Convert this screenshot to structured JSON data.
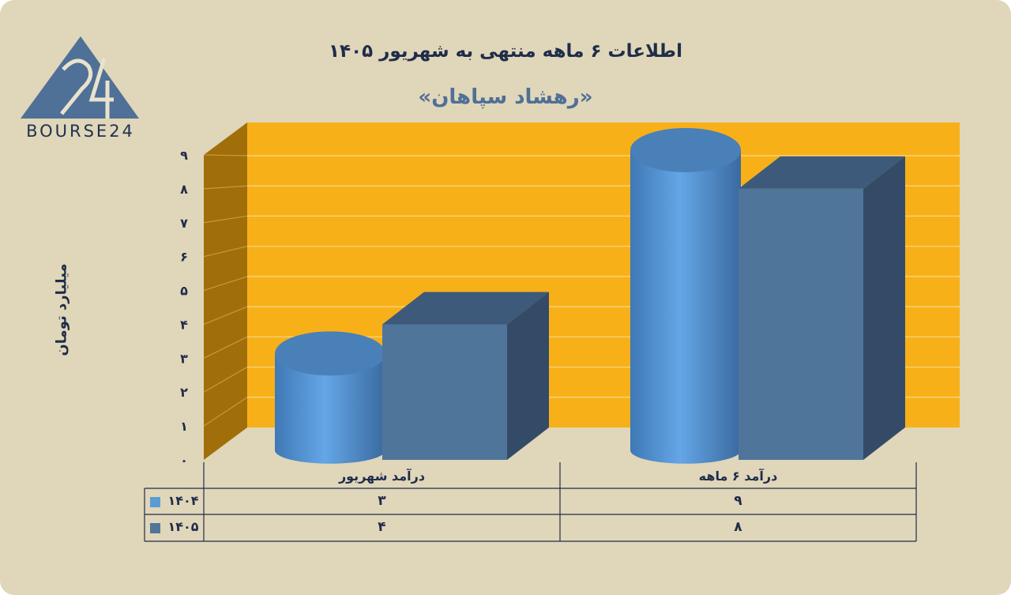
{
  "title": "اطلاعات ۶ ماهه منتهی به شهریور ۱۴۰۵",
  "subtitle": "«رهشاد سپاهان»",
  "logo_text": "BOURSE24",
  "colors": {
    "background": "#e0d6b9",
    "plot_back": "#f8b018",
    "plot_side": "#a06f0a",
    "series_1404": "#5b9bd5",
    "series_1405": "#50759b",
    "text_dark": "#1f2d4a"
  },
  "chart_data": {
    "type": "bar",
    "categories": [
      "درآمد  شهریور",
      "درآمد ۶  ماهه"
    ],
    "series": [
      {
        "name": "۱۴۰۴",
        "values": [
          3,
          9
        ],
        "shape": "cylinder"
      },
      {
        "name": "۱۴۰۵",
        "values": [
          4,
          8
        ],
        "shape": "box"
      }
    ],
    "ylabel": "میلیارد تومان",
    "ylim": [
      0,
      9
    ],
    "yticks": [
      "۰",
      "۱",
      "۲",
      "۳",
      "۴",
      "۵",
      "۶",
      "۷",
      "۸",
      "۹"
    ],
    "table_values": [
      [
        "۳",
        "۹"
      ],
      [
        "۴",
        "۸"
      ]
    ],
    "grid": true,
    "legend": "data-table"
  }
}
